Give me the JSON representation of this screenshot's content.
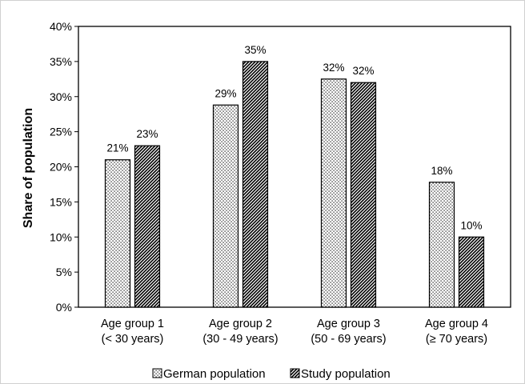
{
  "chart_data": {
    "type": "bar",
    "categories": [
      [
        "Age group 1",
        "(< 30 years)"
      ],
      [
        "Age group 2",
        "(30 - 49 years)"
      ],
      [
        "Age group 3",
        "(50 - 69 years)"
      ],
      [
        "Age group 4",
        "(≥ 70 years)"
      ]
    ],
    "series": [
      {
        "name": "German population",
        "values": [
          21,
          28.8,
          32.5,
          17.8
        ],
        "data_labels": [
          "21%",
          "29%",
          "32%",
          "18%"
        ],
        "fill": "dots"
      },
      {
        "name": "Study population",
        "values": [
          23,
          35,
          32,
          10
        ],
        "data_labels": [
          "23%",
          "35%",
          "32%",
          "10%"
        ],
        "fill": "diagonal-hatch"
      }
    ],
    "ylabel": "Share of population",
    "ylim": [
      0,
      40
    ],
    "yticks": [
      0,
      5,
      10,
      15,
      20,
      25,
      30,
      35,
      40
    ],
    "ytick_labels": [
      "0%",
      "5%",
      "10%",
      "15%",
      "20%",
      "25%",
      "30%",
      "35%",
      "40%"
    ],
    "grid": false,
    "legend_position": "bottom",
    "colors": {
      "stroke": "#000000",
      "background": "#ffffff"
    }
  }
}
